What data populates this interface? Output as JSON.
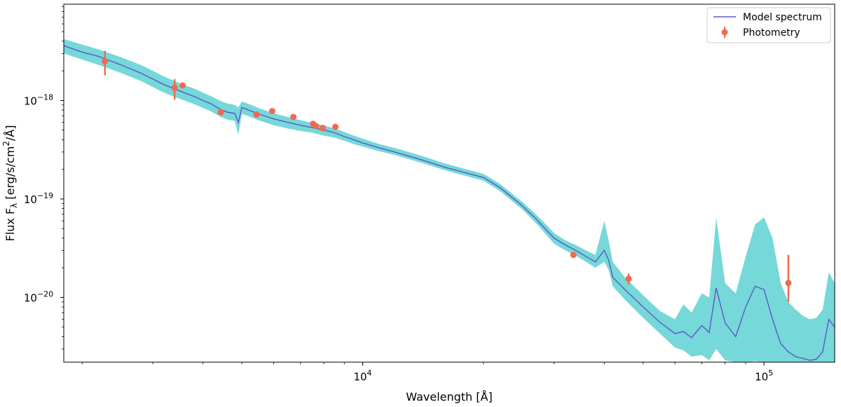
{
  "chart_data": {
    "type": "line",
    "xlabel": "Wavelength [Å]",
    "ylabel_parts": {
      "pre": "Flux F",
      "sub": "λ",
      "mid": " [erg/s/cm",
      "sup": "2",
      "post": "/Å]"
    },
    "xscale": "log",
    "yscale": "log",
    "xlim": [
      1800,
      150000
    ],
    "ylim": [
      2.2e-21,
      9.5e-18
    ],
    "x_ticks": [
      {
        "value": 10000,
        "base": "10",
        "exp": "4"
      },
      {
        "value": 100000,
        "base": "10",
        "exp": "5"
      }
    ],
    "y_ticks": [
      {
        "value": 1e-20,
        "base": "10",
        "exp": "−20"
      },
      {
        "value": 1e-19,
        "base": "10",
        "exp": "−19"
      },
      {
        "value": 1e-18,
        "base": "10",
        "exp": "−18"
      }
    ],
    "legend": {
      "placement": "top-right",
      "entries": [
        "Model spectrum",
        "Photometry"
      ]
    },
    "colors": {
      "model_line": "#5b57c9",
      "model_band": "#3cc8c8",
      "photometry": "#f06a4f"
    },
    "model_spectrum": {
      "name": "Model spectrum",
      "x": [
        1800,
        2000,
        2200,
        2500,
        2800,
        3000,
        3200,
        3500,
        3800,
        4000,
        4200,
        4400,
        4600,
        4700,
        4800,
        4900,
        5000,
        5200,
        5500,
        6000,
        6500,
        7000,
        7500,
        8000,
        8500,
        9000,
        9500,
        10000,
        11000,
        12000,
        14000,
        16000,
        18000,
        20000,
        22000,
        25000,
        27000,
        29000,
        30000,
        32000,
        34000,
        36000,
        38000,
        40000,
        41000,
        42000,
        45000,
        50000,
        55000,
        60000,
        63000,
        66000,
        70000,
        73000,
        76000,
        80000,
        85000,
        90000,
        95000,
        100000,
        105000,
        110000,
        115000,
        120000,
        125000,
        130000,
        135000,
        140000,
        145000,
        150000
      ],
      "y": [
        3.6e-18,
        3.1e-18,
        2.8e-18,
        2.3e-18,
        1.9e-18,
        1.65e-18,
        1.45e-18,
        1.25e-18,
        1.1e-18,
        1e-18,
        9.2e-19,
        8.2e-19,
        7.6e-19,
        7.5e-19,
        7.4e-19,
        6e-19,
        8.5e-19,
        8e-19,
        7.3e-19,
        6.5e-19,
        6e-19,
        5.6e-19,
        5.3e-19,
        5e-19,
        4.7e-19,
        4.3e-19,
        4e-19,
        3.7e-19,
        3.3e-19,
        3e-19,
        2.5e-19,
        2.1e-19,
        1.85e-19,
        1.65e-19,
        1.3e-19,
        8.5e-20,
        6.3e-20,
        4.6e-20,
        4e-20,
        3.4e-20,
        3e-20,
        2.6e-20,
        2.3e-20,
        3e-20,
        2.4e-20,
        1.6e-20,
        1.2e-20,
        8e-21,
        5.6e-21,
        4.3e-21,
        4.5e-21,
        3.9e-21,
        5.2e-21,
        4.4e-21,
        1.25e-20,
        5.5e-21,
        4e-21,
        8e-21,
        1.3e-20,
        1.2e-20,
        6e-21,
        3.4e-21,
        2.8e-21,
        2.5e-21,
        2.4e-21,
        2.3e-21,
        2.35e-21,
        2.8e-21,
        6e-21,
        5e-21
      ],
      "band_upper": [
        4.2e-18,
        3.7e-18,
        3.3e-18,
        2.75e-18,
        2.3e-18,
        2e-18,
        1.75e-18,
        1.5e-18,
        1.32e-18,
        1.2e-18,
        1.1e-18,
        1e-18,
        9.3e-19,
        9.2e-19,
        9e-19,
        8.5e-19,
        9.8e-19,
        9.2e-19,
        8.4e-19,
        7.4e-19,
        6.8e-19,
        6.3e-19,
        5.9e-19,
        5.6e-19,
        5.2e-19,
        4.8e-19,
        4.4e-19,
        4.1e-19,
        3.6e-19,
        3.3e-19,
        2.75e-19,
        2.3e-19,
        2.02e-19,
        1.8e-19,
        1.42e-19,
        9.3e-20,
        7e-20,
        5.2e-20,
        4.5e-20,
        3.8e-20,
        3.4e-20,
        3e-20,
        2.7e-20,
        6e-20,
        3.8e-20,
        2.3e-20,
        1.6e-20,
        1.05e-20,
        7.3e-21,
        6e-21,
        8.5e-21,
        7e-21,
        1.1e-20,
        1e-20,
        6.5e-20,
        1.4e-20,
        1.1e-20,
        2.6e-20,
        5.5e-20,
        6.5e-20,
        4e-20,
        1.4e-20,
        9e-21,
        7.5e-21,
        6.5e-21,
        6e-21,
        6.2e-21,
        7.5e-21,
        1.8e-20,
        1.4e-20
      ],
      "band_lower": [
        3e-18,
        2.6e-18,
        2.3e-18,
        1.9e-18,
        1.58e-18,
        1.37e-18,
        1.2e-18,
        1.04e-18,
        9.2e-19,
        8.4e-19,
        7.7e-19,
        6.9e-19,
        6.4e-19,
        6.3e-19,
        6.2e-19,
        4.5e-19,
        7.3e-19,
        6.9e-19,
        6.3e-19,
        5.6e-19,
        5.2e-19,
        4.9e-19,
        4.7e-19,
        4.4e-19,
        4.2e-19,
        3.9e-19,
        3.6e-19,
        3.4e-19,
        3.05e-19,
        2.8e-19,
        2.33e-19,
        1.96e-19,
        1.72e-19,
        1.53e-19,
        1.2e-19,
        7.8e-20,
        5.7e-20,
        4.1e-20,
        3.5e-20,
        3e-20,
        2.65e-20,
        2.3e-20,
        2e-20,
        2.3e-20,
        1.9e-20,
        1.3e-20,
        9.5e-21,
        6.2e-21,
        4.3e-21,
        3.1e-21,
        2.9e-21,
        2.5e-21,
        2.6e-21,
        2.3e-21,
        3e-21,
        2.3e-21,
        2.2e-21,
        2.2e-21,
        2.25e-21,
        2.2e-21,
        2.2e-21,
        2.2e-21,
        2.2e-21,
        2.2e-21,
        2.2e-21,
        2.2e-21,
        2.2e-21,
        2.2e-21,
        2.2e-21,
        2.2e-21
      ]
    },
    "photometry": {
      "name": "Photometry",
      "points": [
        {
          "x": 2280,
          "y": 2.5e-18,
          "err_low": 1.8e-18,
          "err_high": 3.2e-18
        },
        {
          "x": 3400,
          "y": 1.35e-18,
          "err_low": 1.02e-18,
          "err_high": 1.65e-18
        },
        {
          "x": 3560,
          "y": 1.42e-18,
          "err_low": 1.34e-18,
          "err_high": 1.5e-18
        },
        {
          "x": 4430,
          "y": 7.6e-19,
          "err_low": 7.3e-19,
          "err_high": 7.9e-19
        },
        {
          "x": 5440,
          "y": 7.2e-19,
          "err_low": 6.9e-19,
          "err_high": 7.5e-19
        },
        {
          "x": 5950,
          "y": 7.8e-19,
          "err_low": 7.5e-19,
          "err_high": 8.1e-19
        },
        {
          "x": 6720,
          "y": 6.8e-19,
          "err_low": 6.5e-19,
          "err_high": 7.1e-19
        },
        {
          "x": 7520,
          "y": 5.8e-19,
          "err_low": 5.5e-19,
          "err_high": 6.1e-19
        },
        {
          "x": 7650,
          "y": 5.5e-19,
          "err_low": 5.2e-19,
          "err_high": 5.8e-19
        },
        {
          "x": 7950,
          "y": 5.25e-19,
          "err_low": 5e-19,
          "err_high": 5.5e-19
        },
        {
          "x": 8550,
          "y": 5.4e-19,
          "err_low": 5.15e-19,
          "err_high": 5.65e-19
        },
        {
          "x": 33500,
          "y": 2.7e-20,
          "err_low": 2.6e-20,
          "err_high": 2.8e-20
        },
        {
          "x": 46000,
          "y": 1.55e-20,
          "err_low": 1.35e-20,
          "err_high": 1.75e-20
        },
        {
          "x": 115000,
          "y": 1.4e-20,
          "err_low": 9e-21,
          "err_high": 2.7e-20
        }
      ]
    }
  }
}
